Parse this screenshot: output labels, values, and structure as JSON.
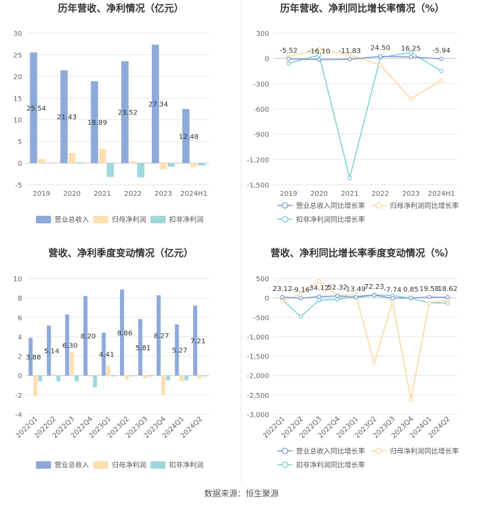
{
  "source_label": "数据来源：恒生聚源",
  "colors": {
    "revenue": "#8eaadb",
    "net_profit": "#fce0b0",
    "deducted_profit": "#9fd8db",
    "revenue_line": "#7a9bd0",
    "net_profit_line": "#fcd49b",
    "deducted_line": "#79cfd3",
    "grid": "#e6e6e6",
    "axis_text": "#666666",
    "title_text": "#333333"
  },
  "legend_icons": {
    "bar": "rect-swatch",
    "line": "line-circle-marker"
  },
  "chart_data": [
    {
      "id": "annual_values",
      "type": "bar",
      "title": "历年营收、净利情况（亿元）",
      "categories": [
        "2019",
        "2020",
        "2021",
        "2022",
        "2023",
        "2024H1"
      ],
      "ylim": [
        -5,
        30
      ],
      "yticks": [
        -5,
        0,
        5,
        10,
        15,
        20,
        25,
        30
      ],
      "grid": true,
      "legend_position": "bottom",
      "series": [
        {
          "name": "营业总收入",
          "color_key": "revenue",
          "values": [
            25.54,
            21.43,
            18.89,
            23.52,
            27.34,
            12.48
          ],
          "labels": [
            "25.54",
            "21.43",
            "18.89",
            "23.52",
            "27.34",
            "12.48"
          ]
        },
        {
          "name": "归母净利润",
          "color_key": "net_profit",
          "values": [
            1.0,
            2.3,
            3.3,
            0.4,
            -1.4,
            -0.9
          ]
        },
        {
          "name": "扣非净利润",
          "color_key": "deducted_profit",
          "values": [
            0.1,
            0.2,
            -3.2,
            -3.3,
            -0.8,
            -0.6
          ]
        }
      ]
    },
    {
      "id": "annual_growth",
      "type": "line",
      "title": "历年营收、净利同比增长率情况（%）",
      "categories": [
        "2019",
        "2020",
        "2021",
        "2022",
        "2023",
        "2024H1"
      ],
      "ylim": [
        -1500,
        300
      ],
      "yticks": [
        300,
        0,
        -300,
        -600,
        -900,
        -1200,
        -1500
      ],
      "ytick_labels": [
        "300",
        "0",
        "-300",
        "-600",
        "-900",
        "-1,200",
        "-1,500"
      ],
      "grid": true,
      "legend_position": "bottom",
      "series": [
        {
          "name": "营业总收入同比增长率",
          "color_key": "revenue_line",
          "values": [
            -5.52,
            -16.1,
            -11.83,
            24.5,
            16.25,
            -5.94
          ],
          "labels": [
            "-5.52",
            "-16.10",
            "-11.83",
            "24.50",
            "16.25",
            "-5.94"
          ]
        },
        {
          "name": "归母净利润同比增长率",
          "color_key": "net_profit_line",
          "values": [
            20,
            110,
            40,
            -80,
            -480,
            -260
          ]
        },
        {
          "name": "扣非净利润同比增长率",
          "color_key": "deducted_line",
          "values": [
            -60,
            40,
            -1420,
            10,
            70,
            -150
          ]
        }
      ]
    },
    {
      "id": "quarterly_values",
      "type": "bar",
      "title": "营收、净利季度变动情况（亿元）",
      "categories": [
        "2022Q1",
        "2022Q2",
        "2022Q3",
        "2022Q4",
        "2023Q1",
        "2023Q2",
        "2023Q3",
        "2023Q4",
        "2024Q1",
        "2024Q2"
      ],
      "ylim": [
        -4,
        10
      ],
      "yticks": [
        -4,
        -2,
        0,
        2,
        4,
        6,
        8,
        10
      ],
      "grid": true,
      "legend_position": "bottom",
      "series": [
        {
          "name": "营业总收入",
          "color_key": "revenue",
          "values": [
            3.88,
            5.14,
            6.3,
            8.2,
            4.41,
            8.86,
            5.81,
            8.27,
            5.27,
            7.21
          ],
          "labels": [
            "3.88",
            "5.14",
            "6.30",
            "8.20",
            "4.41",
            "8.86",
            "5.81",
            "8.27",
            "5.27",
            "7.21"
          ]
        },
        {
          "name": "归母净利润",
          "color_key": "net_profit",
          "values": [
            -2.1,
            0.1,
            2.4,
            -0.1,
            1.0,
            -0.4,
            -0.3,
            -2.0,
            -0.6,
            -0.3
          ]
        },
        {
          "name": "扣非净利润",
          "color_key": "deducted_profit",
          "values": [
            -0.6,
            -0.6,
            -0.6,
            -1.2,
            -0.1,
            -0.1,
            -0.1,
            -0.5,
            -0.5,
            -0.1
          ]
        }
      ]
    },
    {
      "id": "quarterly_growth",
      "type": "line",
      "title": "营收、净利同比增长率季度变动情况（%）",
      "categories": [
        "2022Q1",
        "2022Q2",
        "2022Q3",
        "2022Q4",
        "2023Q1",
        "2023Q2",
        "2023Q3",
        "2023Q4",
        "2024Q1",
        "2024Q2"
      ],
      "ylim": [
        -3000,
        500
      ],
      "yticks": [
        500,
        0,
        -500,
        -1000,
        -1500,
        -2000,
        -2500,
        -3000
      ],
      "ytick_labels": [
        "500",
        "0",
        "-500",
        "-1,000",
        "-1,500",
        "-2,000",
        "-2,500",
        "-3,000"
      ],
      "grid": true,
      "legend_position": "bottom",
      "series": [
        {
          "name": "营业总收入同比增长率",
          "color_key": "revenue_line",
          "values": [
            23.12,
            -9.16,
            34.12,
            52.32,
            13.49,
            72.23,
            -7.74,
            0.85,
            19.58,
            18.62
          ],
          "labels": [
            "23.12",
            "-9.16",
            "34.12",
            "52.32",
            "13.49",
            "72.23",
            "-7.74",
            "0.85",
            "19.58",
            "18.62"
          ]
        },
        {
          "name": "归母净利润同比增长率",
          "color_key": "net_profit_line",
          "values": [
            -80,
            100,
            430,
            60,
            80,
            -1680,
            -100,
            -2620,
            -130,
            -60
          ]
        },
        {
          "name": "扣非净利润同比增长率",
          "color_key": "deducted_line",
          "values": [
            -50,
            -480,
            -60,
            -40,
            40,
            80,
            60,
            -10,
            -130,
            -130
          ]
        }
      ]
    }
  ]
}
